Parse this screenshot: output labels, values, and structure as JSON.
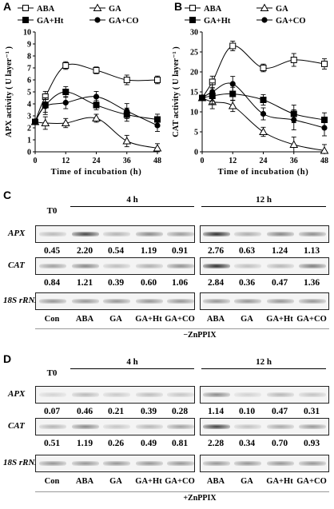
{
  "panels": {
    "a": "A",
    "b": "B",
    "c": "C",
    "d": "D"
  },
  "chart_data": [
    {
      "type": "line",
      "panel": "A",
      "xlabel": "Time of incubation (h)",
      "ylabel": "APX activity ( U layer⁻¹ )",
      "x": [
        0,
        4,
        12,
        24,
        36,
        48
      ],
      "xticks": [
        "0",
        "12",
        "24",
        "36",
        "48"
      ],
      "yticks": [
        "0",
        "1",
        "2",
        "3",
        "4",
        "5",
        "6",
        "7",
        "8",
        "9",
        "10"
      ],
      "xlim": [
        0,
        48
      ],
      "ylim": [
        0,
        10
      ],
      "legend_position": "top",
      "series": [
        {
          "name": "ABA",
          "marker": "open-square",
          "values": [
            2.5,
            4.6,
            7.2,
            6.8,
            6.0,
            6.0
          ]
        },
        {
          "name": "GA",
          "marker": "open-triangle",
          "values": [
            2.5,
            2.4,
            2.4,
            2.8,
            0.9,
            0.3
          ]
        },
        {
          "name": "GA+Ht",
          "marker": "filled-square",
          "values": [
            2.5,
            3.9,
            5.0,
            3.9,
            3.1,
            2.7
          ]
        },
        {
          "name": "GA+CO",
          "marker": "filled-circle",
          "values": [
            2.5,
            3.8,
            4.1,
            4.6,
            3.4,
            2.2
          ]
        }
      ]
    },
    {
      "type": "line",
      "panel": "B",
      "xlabel": "Time of incubation (h)",
      "ylabel": "CAT activity ( U layer⁻¹ )",
      "x": [
        0,
        4,
        12,
        24,
        36,
        48
      ],
      "xticks": [
        "0",
        "12",
        "24",
        "36",
        "48"
      ],
      "yticks": [
        "0",
        "5",
        "10",
        "15",
        "20",
        "25",
        "30"
      ],
      "xlim": [
        0,
        48
      ],
      "ylim": [
        0,
        30
      ],
      "legend_position": "top",
      "series": [
        {
          "name": "ABA",
          "marker": "open-square",
          "values": [
            13.5,
            17.5,
            26.5,
            21.0,
            23.0,
            22.0
          ]
        },
        {
          "name": "GA",
          "marker": "open-triangle",
          "values": [
            13.5,
            12.5,
            11.5,
            5.0,
            1.8,
            0.3
          ]
        },
        {
          "name": "GA+Ht",
          "marker": "filled-square",
          "values": [
            13.5,
            14.0,
            14.5,
            13.0,
            9.5,
            8.0
          ]
        },
        {
          "name": "GA+CO",
          "marker": "filled-circle",
          "values": [
            13.5,
            15.0,
            17.0,
            9.5,
            8.0,
            6.0
          ]
        }
      ]
    },
    {
      "type": "table",
      "panel": "C",
      "t0_label": "T0",
      "time_labels": [
        "4 h",
        "12 h"
      ],
      "lanes": [
        "Con",
        "ABA",
        "GA",
        "GA+Ht",
        "GA+CO",
        "ABA",
        "GA",
        "GA+Ht",
        "GA+CO"
      ],
      "rows": [
        {
          "label": "APX",
          "values": [
            "0.45",
            "2.20",
            "0.54",
            "1.19",
            "0.91",
            "2.76",
            "0.63",
            "1.24",
            "1.13"
          ],
          "intensity": [
            0.45,
            2.2,
            0.54,
            1.19,
            0.91,
            2.76,
            0.63,
            1.24,
            1.13
          ]
        },
        {
          "label": "CAT",
          "values": [
            "0.84",
            "1.21",
            "0.39",
            "0.60",
            "1.06",
            "2.84",
            "0.36",
            "0.47",
            "1.36"
          ],
          "intensity": [
            0.84,
            1.21,
            0.39,
            0.6,
            1.06,
            2.84,
            0.36,
            0.47,
            1.36
          ]
        },
        {
          "label": "18S rRNA",
          "values": [],
          "intensity": [
            1,
            1,
            1,
            1,
            1,
            1,
            1,
            1,
            1
          ]
        }
      ],
      "condition": "−ZnPPIX"
    },
    {
      "type": "table",
      "panel": "D",
      "t0_label": "T0",
      "time_labels": [
        "4 h",
        "12 h"
      ],
      "lanes": [
        "Con",
        "ABA",
        "GA",
        "GA+Ht",
        "GA+CO",
        "ABA",
        "GA",
        "GA+Ht",
        "GA+CO"
      ],
      "rows": [
        {
          "label": "APX",
          "values": [
            "0.07",
            "0.46",
            "0.21",
            "0.39",
            "0.28",
            "1.14",
            "0.10",
            "0.47",
            "0.31"
          ],
          "intensity": [
            0.07,
            0.46,
            0.21,
            0.39,
            0.28,
            1.14,
            0.1,
            0.47,
            0.31
          ]
        },
        {
          "label": "CAT",
          "values": [
            "0.51",
            "1.19",
            "0.26",
            "0.49",
            "0.81",
            "2.28",
            "0.34",
            "0.70",
            "0.93"
          ],
          "intensity": [
            0.51,
            1.19,
            0.26,
            0.49,
            0.81,
            2.28,
            0.34,
            0.7,
            0.93
          ]
        },
        {
          "label": "18S rRNA",
          "values": [],
          "intensity": [
            1,
            1,
            1,
            1,
            1,
            1,
            1,
            1,
            1
          ]
        }
      ],
      "condition": "+ZnPPIX"
    }
  ]
}
